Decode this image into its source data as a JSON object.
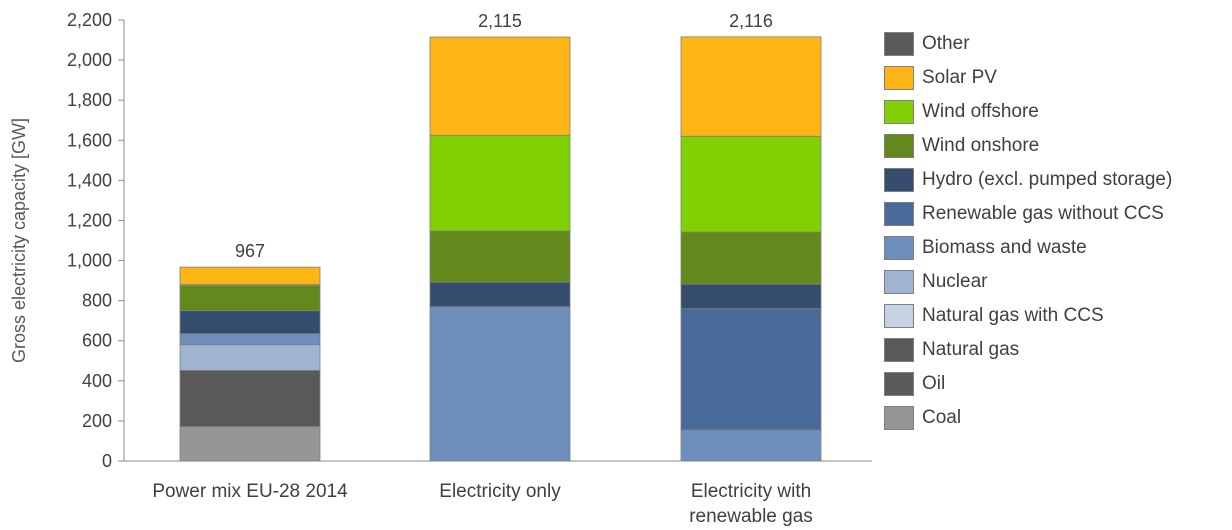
{
  "chart_data": {
    "type": "bar",
    "stacked": true,
    "ylabel": "Gross electricity capacity [GW]",
    "ylim": [
      0,
      2200
    ],
    "yticks": [
      0,
      200,
      400,
      600,
      800,
      1000,
      1200,
      1400,
      1600,
      1800,
      2000,
      2200
    ],
    "ytick_labels": [
      "0",
      "200",
      "400",
      "600",
      "800",
      "1,000",
      "1,200",
      "1,400",
      "1,600",
      "1,800",
      "2,000",
      "2,200"
    ],
    "grid": false,
    "legend_position": "right",
    "categories": [
      [
        "Power mix EU-28 2014"
      ],
      [
        "Electricity only"
      ],
      [
        "Electricity with",
        "renewable gas"
      ]
    ],
    "totals": [
      967,
      2115,
      2116
    ],
    "total_labels": [
      "967",
      "2,115",
      "2,116"
    ],
    "series": [
      {
        "name": "Coal",
        "color": "#969696",
        "values": [
          172,
          0,
          0
        ]
      },
      {
        "name": "Oil",
        "color": "#595959",
        "values": [
          0,
          0,
          0
        ]
      },
      {
        "name": "Natural gas",
        "color": "#595959",
        "values": [
          280,
          0,
          0
        ]
      },
      {
        "name": "Natural gas with CCS",
        "color": "#c6d2e3",
        "values": [
          0,
          0,
          0
        ]
      },
      {
        "name": "Nuclear",
        "color": "#a0b4d2",
        "values": [
          128,
          0,
          0
        ]
      },
      {
        "name": "Biomass and waste",
        "color": "#6e8fbc",
        "values": [
          55,
          770,
          155
        ]
      },
      {
        "name": "Renewable gas without CCS",
        "color": "#4a6a9c",
        "values": [
          0,
          0,
          605
        ]
      },
      {
        "name": "Hydro (excl. pumped storage)",
        "color": "#344c6e",
        "values": [
          115,
          122,
          122
        ]
      },
      {
        "name": "Wind onshore",
        "color": "#63891d",
        "values": [
          125,
          255,
          260
        ]
      },
      {
        "name": "Wind offshore",
        "color": "#80d004",
        "values": [
          5,
          478,
          478
        ]
      },
      {
        "name": "Solar PV",
        "color": "#fdb516",
        "values": [
          87,
          490,
          496
        ]
      },
      {
        "name": "Other",
        "color": "#595959",
        "values": [
          0,
          0,
          0
        ]
      }
    ]
  }
}
